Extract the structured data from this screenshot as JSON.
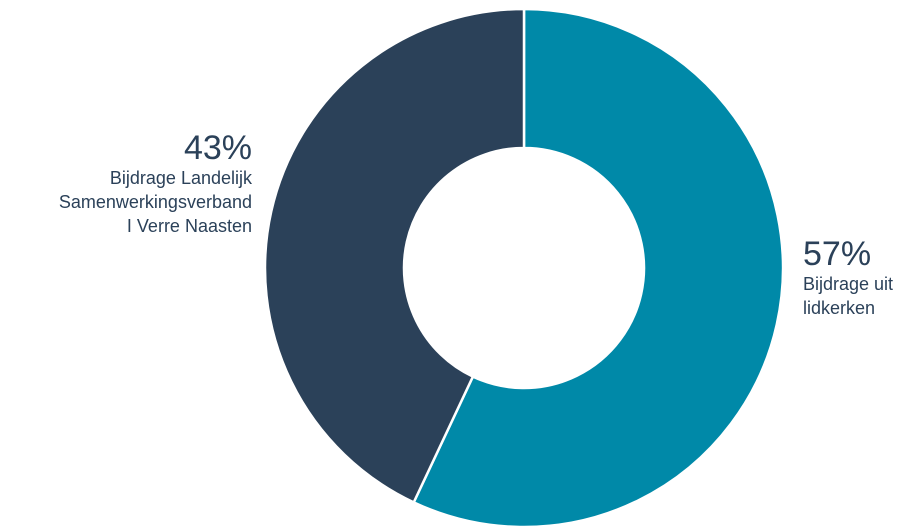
{
  "chart_data": {
    "type": "pie",
    "variant": "donut",
    "slices": [
      {
        "percent_label": "57%",
        "label": "Bijdrage uit lidkerken",
        "label_lines": [
          "Bijdrage uit",
          "lidkerken"
        ],
        "value": 57,
        "color": "#0089a8"
      },
      {
        "percent_label": "43%",
        "label": "Bijdrage Landelijk Samenwerkingsverband I Verre Naasten",
        "label_lines": [
          "Bijdrage Landelijk",
          "Samenwerkingsverband",
          "I Verre Naasten"
        ],
        "value": 43,
        "color": "#2b4159"
      }
    ],
    "legend": "none",
    "grid": false
  }
}
